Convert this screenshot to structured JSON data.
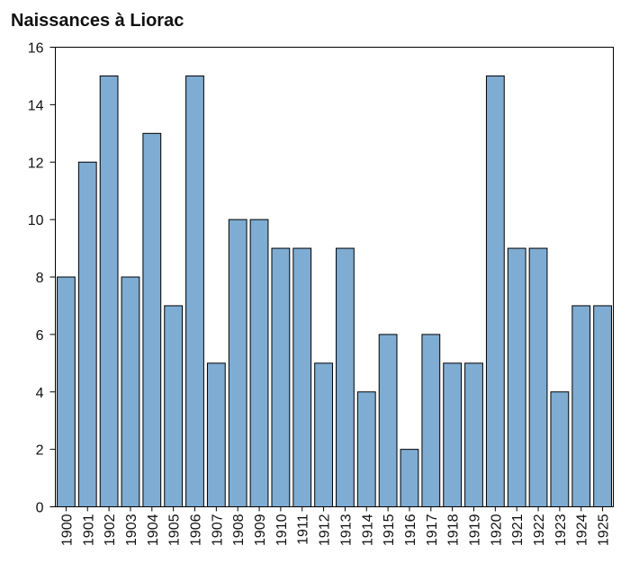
{
  "chart_data": {
    "type": "bar",
    "title": "Naissances à Liorac",
    "xlabel": "",
    "ylabel": "",
    "categories": [
      "1900",
      "1901",
      "1902",
      "1903",
      "1904",
      "1905",
      "1906",
      "1907",
      "1908",
      "1909",
      "1910",
      "1911",
      "1912",
      "1913",
      "1914",
      "1915",
      "1916",
      "1917",
      "1918",
      "1919",
      "1920",
      "1921",
      "1922",
      "1923",
      "1924",
      "1925"
    ],
    "values": [
      8,
      12,
      15,
      8,
      13,
      7,
      15,
      5,
      10,
      10,
      9,
      9,
      5,
      9,
      4,
      6,
      2,
      6,
      5,
      5,
      15,
      9,
      9,
      4,
      7,
      7
    ],
    "ylim": [
      0,
      16
    ],
    "yticks": [
      0,
      2,
      4,
      6,
      8,
      10,
      12,
      14,
      16
    ],
    "grid": false,
    "legend": "none",
    "bar_color": "#7eacd3",
    "edge_color": "#000000"
  }
}
